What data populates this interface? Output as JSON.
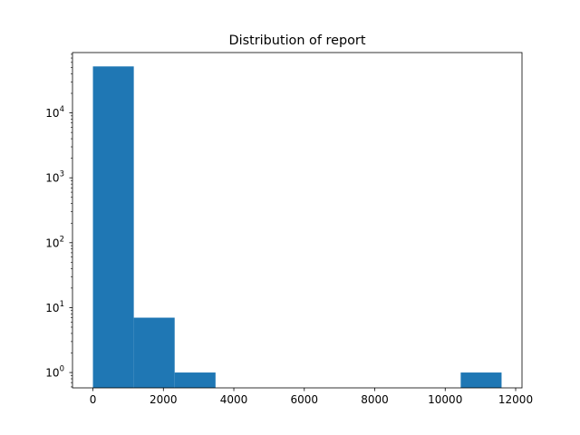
{
  "chart_data": {
    "type": "bar",
    "title": "Distribution of report",
    "xlabel": "",
    "ylabel": "",
    "y_scale": "log",
    "grid": false,
    "xlim": [
      -580,
      12180
    ],
    "ylim": [
      0.58,
      85000
    ],
    "bar_color": "#1f77b4",
    "bins": [
      {
        "x0": 0,
        "x1": 1160,
        "count": 52000
      },
      {
        "x0": 1160,
        "x1": 2320,
        "count": 7
      },
      {
        "x0": 2320,
        "x1": 3480,
        "count": 1
      },
      {
        "x0": 3480,
        "x1": 4640,
        "count": 0
      },
      {
        "x0": 4640,
        "x1": 5800,
        "count": 0
      },
      {
        "x0": 5800,
        "x1": 6960,
        "count": 0
      },
      {
        "x0": 6960,
        "x1": 8120,
        "count": 0
      },
      {
        "x0": 8120,
        "x1": 9280,
        "count": 0
      },
      {
        "x0": 9280,
        "x1": 10440,
        "count": 0
      },
      {
        "x0": 10440,
        "x1": 11600,
        "count": 1
      }
    ],
    "x_ticks": [
      {
        "value": 0,
        "label": "0"
      },
      {
        "value": 2000,
        "label": "2000"
      },
      {
        "value": 4000,
        "label": "4000"
      },
      {
        "value": 6000,
        "label": "6000"
      },
      {
        "value": 8000,
        "label": "8000"
      },
      {
        "value": 10000,
        "label": "10000"
      },
      {
        "value": 12000,
        "label": "12000"
      }
    ],
    "y_ticks": [
      {
        "value": 1,
        "base": "10",
        "exp": "0"
      },
      {
        "value": 10,
        "base": "10",
        "exp": "1"
      },
      {
        "value": 100,
        "base": "10",
        "exp": "2"
      },
      {
        "value": 1000,
        "base": "10",
        "exp": "3"
      },
      {
        "value": 10000,
        "base": "10",
        "exp": "4"
      }
    ]
  }
}
